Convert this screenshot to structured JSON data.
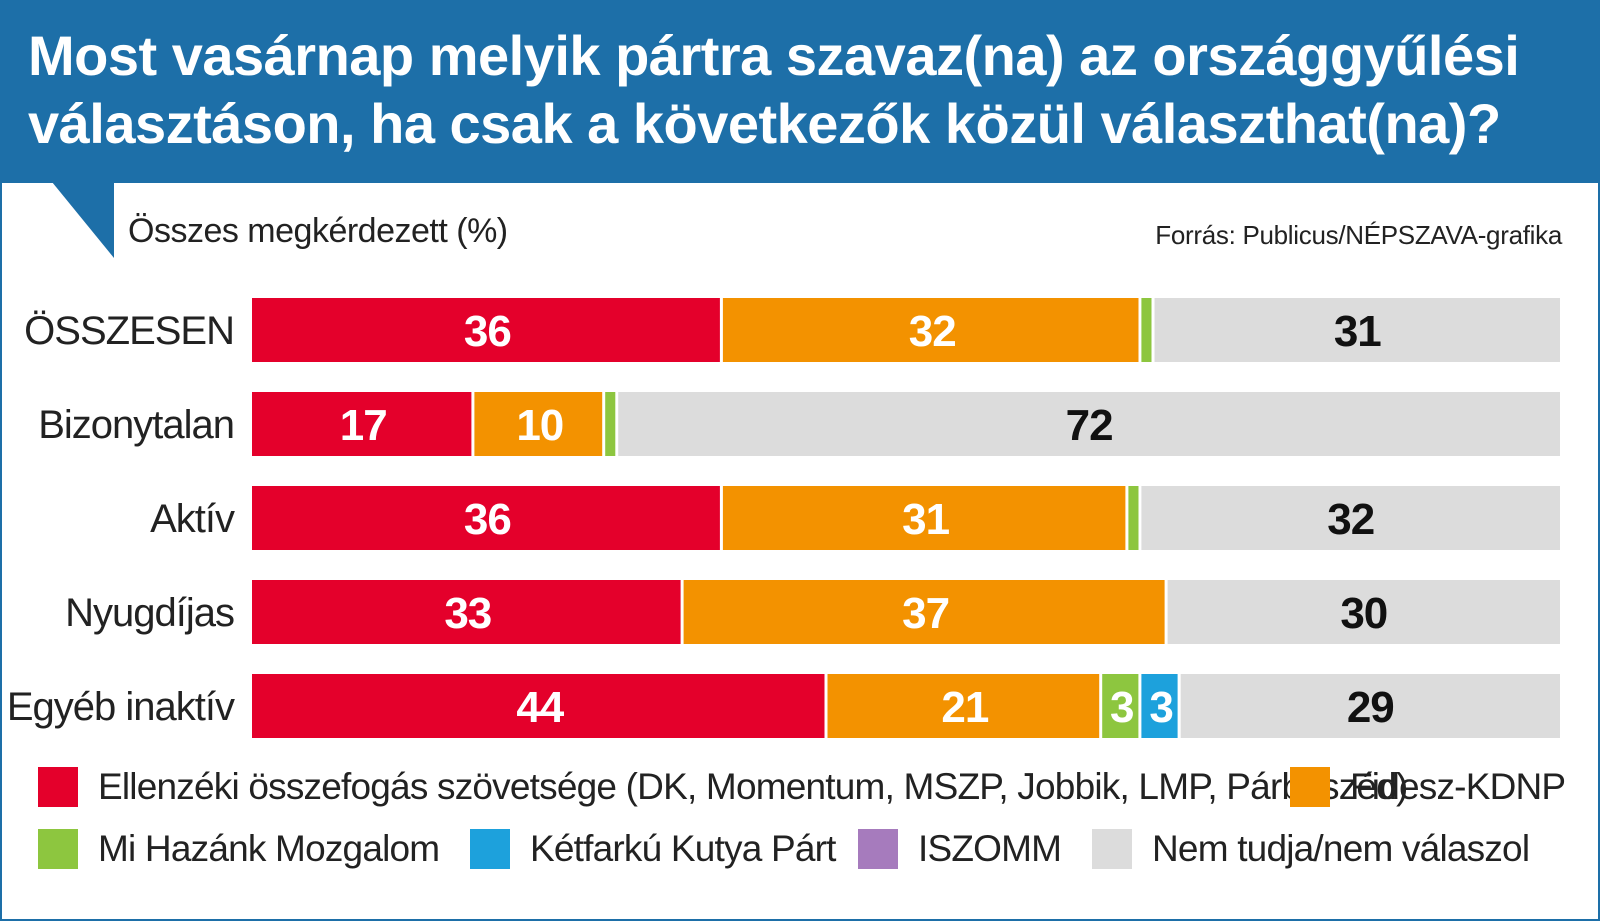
{
  "title": "Most vasárnap melyik pártra szavaz(na) az országgyűlési választáson, ha csak a következők közül választhat(na)?",
  "subtitle": "Összes megkérdezett (%)",
  "source": "Forrás: Publicus/NÉPSZAVA-grafika",
  "colors": {
    "header": "#1d6fa8",
    "opposition": "#e4002b",
    "fidesz": "#f39200",
    "mihazank": "#8dc63f",
    "ketfarku": "#1da1dc",
    "iszomm": "#a67bbd",
    "dontknow": "#dcdcdc"
  },
  "chart_data": {
    "type": "bar",
    "orientation": "horizontal",
    "stacked": true,
    "xlim": [
      0,
      100
    ],
    "unit": "%",
    "categories": [
      "ÖSSZESEN",
      "Bizonytalan",
      "Aktív",
      "Nyugdíjas",
      "Egyéb inaktív"
    ],
    "series": [
      {
        "name": "Ellenzéki összefogás szövetsége (DK, Momentum, MSZP, Jobbik, LMP, Párbeszéd)",
        "key": "opposition",
        "values": [
          36,
          17,
          36,
          33,
          44
        ]
      },
      {
        "name": "Fidesz-KDNP",
        "key": "fidesz",
        "values": [
          32,
          10,
          31,
          37,
          21
        ]
      },
      {
        "name": "Mi Hazánk Mozgalom",
        "key": "mihazank",
        "values": [
          1,
          1,
          1,
          0,
          3
        ]
      },
      {
        "name": "Kétfarkú Kutya Párt",
        "key": "ketfarku",
        "values": [
          0,
          0,
          0,
          0,
          3
        ]
      },
      {
        "name": "ISZOMM",
        "key": "iszomm",
        "values": [
          0,
          0,
          0,
          0,
          0
        ]
      },
      {
        "name": "Nem tudja/nem válaszol",
        "key": "dontknow",
        "values": [
          31,
          72,
          32,
          30,
          29
        ]
      }
    ]
  }
}
